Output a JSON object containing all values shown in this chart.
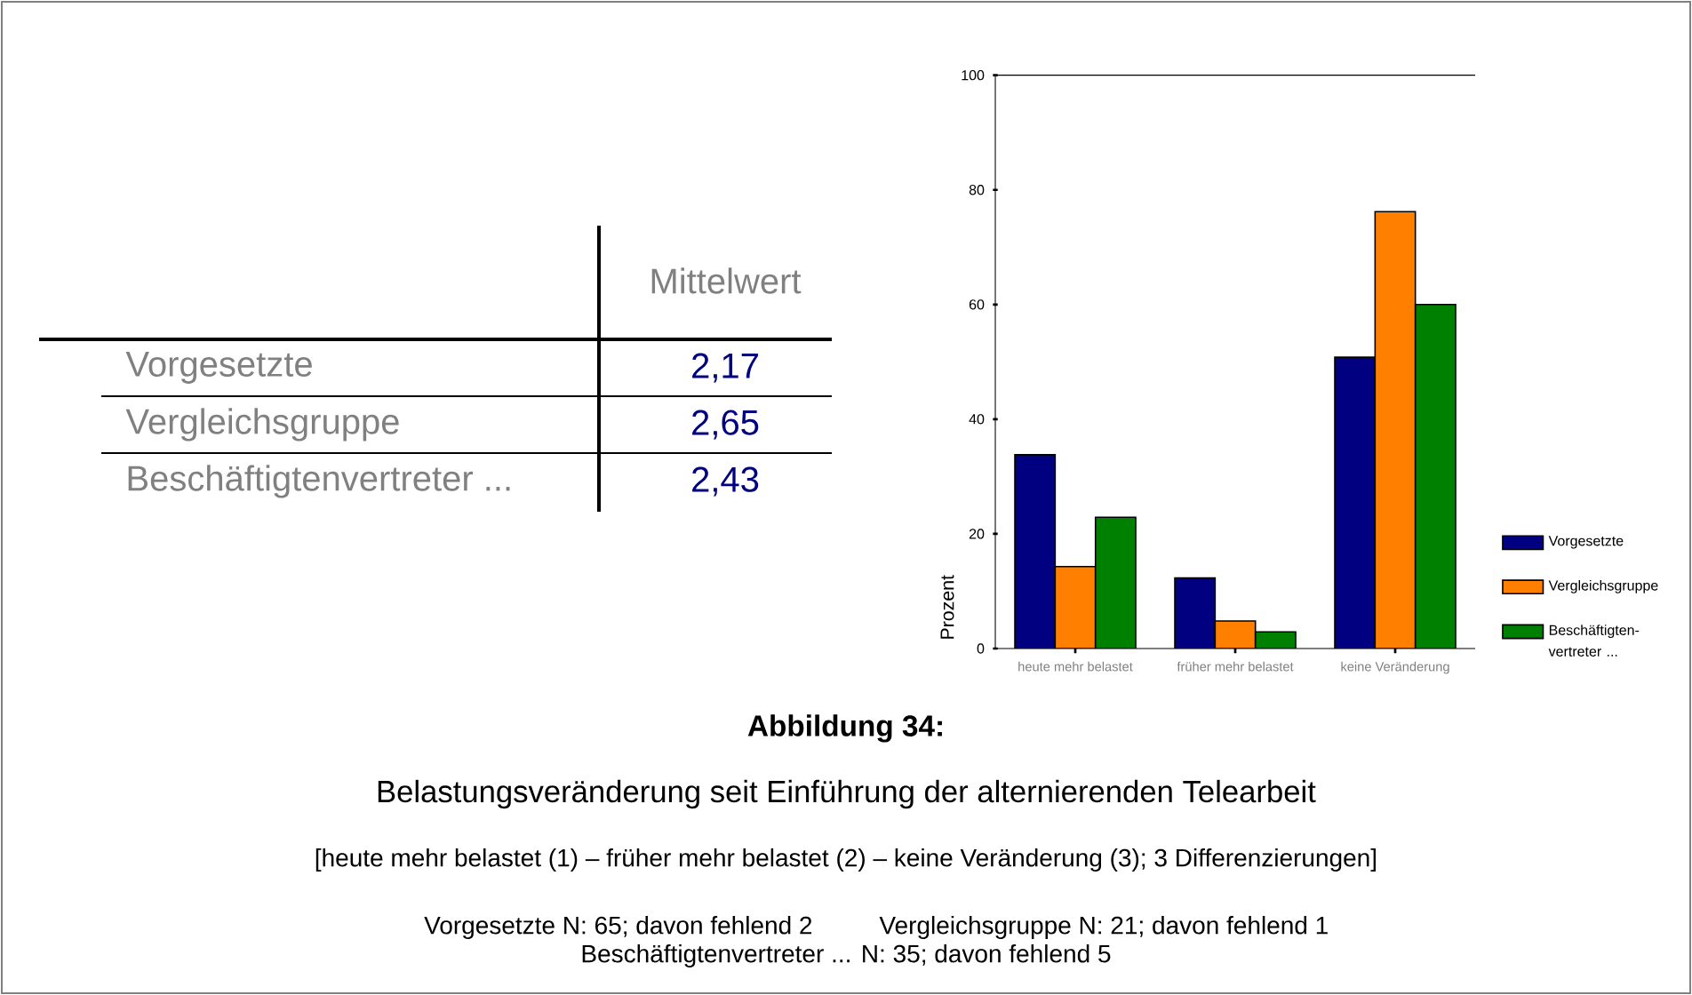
{
  "chart_data": [
    {
      "type": "other",
      "categories": [
        "Vorgesetzte",
        "Vergleichsgruppe",
        "Beschäftigtenvertreter ..."
      ],
      "series": [
        {
          "name": "Mittelwert",
          "values": [
            2.17,
            2.65,
            2.43
          ],
          "value_labels": [
            "2,17",
            "2,65",
            "2,43"
          ]
        }
      ]
    },
    {
      "type": "bar",
      "title": "**Abbildung 34:**",
      "subtitle": "Belastungsveränderung seit Einführung der alternierenden Telearbeit",
      "ylabel": "Prozent",
      "categories": [
        "heute mehr belastet",
        "früher mehr belastet",
        "keine Veränderung"
      ],
      "series": [
        {
          "name": "Vorgesetzte",
          "color": "#000080",
          "values": [
            33.8,
            12.3,
            50.8
          ]
        },
        {
          "name": "Vergleichsgruppe",
          "color": "#ff8000",
          "values": [
            14.3,
            4.8,
            76.2
          ]
        },
        {
          "name": "Beschäftigten- vertreter ...",
          "color": "#008000",
          "values": [
            22.9,
            2.9,
            60.0
          ]
        }
      ],
      "ylim": [
        0,
        100
      ],
      "yticks": [
        0,
        20,
        40,
        60,
        80,
        100
      ],
      "legend": "right",
      "annotations": [
        "[heute mehr belastet (1) – früher mehr belastet (2) – keine Veränderung (3); 3 Differenzierungen]",
        "Vorgesetzte N: 65; davon fehlend 2",
        "Vergleichsgruppe N: 21; davon fehlend 1",
        "Beschäftigtenvertreter ... N: 35; davon fehlend 5"
      ]
    }
  ]
}
